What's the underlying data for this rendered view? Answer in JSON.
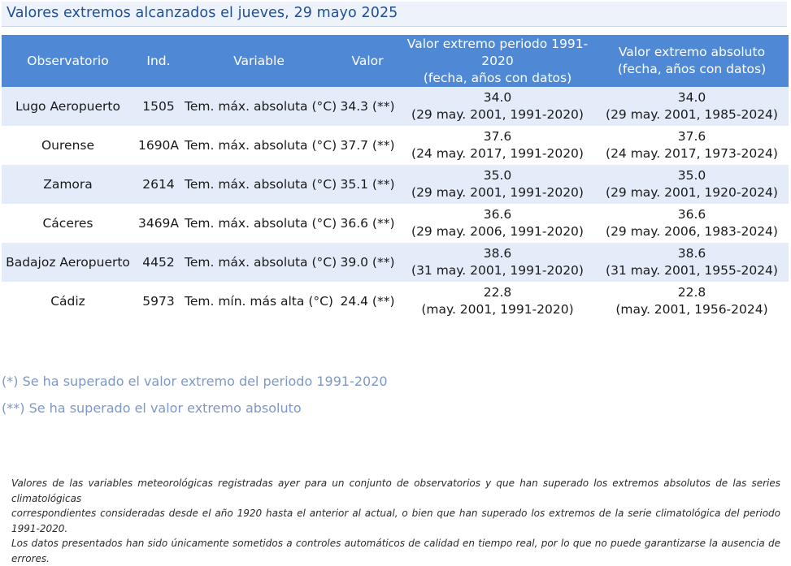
{
  "title": "Valores extremos alcanzados el jueves, 29 mayo 2025",
  "table": {
    "headers": {
      "observatorio": "Observatorio",
      "ind": "Ind.",
      "variable": "Variable",
      "valor": "Valor",
      "periodo_line1": "Valor extremo periodo 1991-2020",
      "periodo_line2": "(fecha, años con datos)",
      "absoluto_line1": "Valor extremo absoluto",
      "absoluto_line2": "(fecha, años con datos)"
    },
    "rows": [
      {
        "observatorio": "Lugo Aeropuerto",
        "ind": "1505",
        "variable": "Tem. máx. absoluta (°C)",
        "valor": "34.3 (**)",
        "periodo_value": "34.0",
        "periodo_detail": "(29 may. 2001, 1991-2020)",
        "absoluto_value": "34.0",
        "absoluto_detail": "(29 may. 2001, 1985-2024)"
      },
      {
        "observatorio": "Ourense",
        "ind": "1690A",
        "variable": "Tem. máx. absoluta (°C)",
        "valor": "37.7 (**)",
        "periodo_value": "37.6",
        "periodo_detail": "(24 may. 2017, 1991-2020)",
        "absoluto_value": "37.6",
        "absoluto_detail": "(24 may. 2017, 1973-2024)"
      },
      {
        "observatorio": "Zamora",
        "ind": "2614",
        "variable": "Tem. máx. absoluta (°C)",
        "valor": "35.1 (**)",
        "periodo_value": "35.0",
        "periodo_detail": "(29 may. 2001, 1991-2020)",
        "absoluto_value": "35.0",
        "absoluto_detail": "(29 may. 2001, 1920-2024)"
      },
      {
        "observatorio": "Cáceres",
        "ind": "3469A",
        "variable": "Tem. máx. absoluta (°C)",
        "valor": "36.6 (**)",
        "periodo_value": "36.6",
        "periodo_detail": "(29 may. 2006, 1991-2020)",
        "absoluto_value": "36.6",
        "absoluto_detail": "(29 may. 2006, 1983-2024)"
      },
      {
        "observatorio": "Badajoz Aeropuerto",
        "ind": "4452",
        "variable": "Tem. máx. absoluta (°C)",
        "valor": "39.0 (**)",
        "periodo_value": "38.6",
        "periodo_detail": "(31 may. 2001, 1991-2020)",
        "absoluto_value": "38.6",
        "absoluto_detail": "(31 may. 2001, 1955-2024)"
      },
      {
        "observatorio": "Cádiz",
        "ind": "5973",
        "variable": "Tem. mín. más alta (°C)",
        "valor": "24.4 (**)",
        "periodo_value": "22.8",
        "periodo_detail": "(may. 2001, 1991-2020)",
        "absoluto_value": "22.8",
        "absoluto_detail": "(may. 2001, 1956-2024)"
      }
    ]
  },
  "notes": {
    "single_star": "(*) Se ha superado el valor extremo del periodo 1991-2020",
    "double_star": "(**) Se ha superado el valor extremo absoluto"
  },
  "footnote": {
    "line1": "Valores de las variables meteorológicas registradas ayer para un conjunto de observatorios y que han superado los extremos absolutos de las series climatológicas",
    "line2": "correspondientes consideradas desde el año 1920 hasta el anterior al actual, o bien que han superado los extremos de la serie climatológica del periodo 1991-2020.",
    "line3": "Los datos presentados han sido únicamente sometidos a controles automáticos de calidad en tiempo real, por lo que no puede garantizarse la ausencia de errores."
  },
  "colors": {
    "header_bg": "#4f89d6",
    "row_alt_bg": "#e3ecf8",
    "title_color": "#1f4f96",
    "notes_color": "#7f97c4"
  }
}
